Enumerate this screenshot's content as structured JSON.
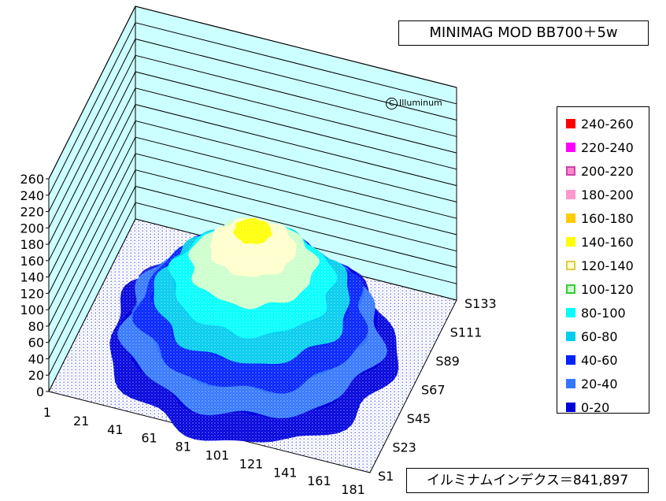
{
  "chart_data": {
    "type": "3d-surface",
    "title": "MINIMAG MOD BB700＋5w",
    "index_label": "イルミナムインデクス＝841,897",
    "watermark": "Illuminum",
    "z_ticks": [
      "0",
      "20",
      "40",
      "60",
      "80",
      "100",
      "120",
      "140",
      "160",
      "180",
      "200",
      "220",
      "240",
      "260"
    ],
    "x_ticks": [
      "1",
      "21",
      "41",
      "61",
      "81",
      "101",
      "121",
      "141",
      "161",
      "181"
    ],
    "y_ticks": [
      "S1",
      "S23",
      "S45",
      "S67",
      "S89",
      "S111",
      "S133"
    ],
    "zlim": [
      0,
      260
    ],
    "x_range": [
      1,
      190
    ],
    "y_range": [
      1,
      150
    ],
    "surface": {
      "shape": "central peak",
      "peak_value": 150,
      "bands_present": [
        "0-20",
        "20-40",
        "40-60",
        "60-80",
        "80-100",
        "100-120",
        "120-140",
        "140-160"
      ]
    },
    "legend": [
      {
        "label": "240-260",
        "color": "#ff0000",
        "border": "#ff0000"
      },
      {
        "label": "220-240",
        "color": "#ff00ff",
        "border": "#ff00ff"
      },
      {
        "label": "200-220",
        "color": "#ff88cc",
        "border": "#cc44aa"
      },
      {
        "label": "180-200",
        "color": "#ff99cc",
        "border": "#ff99cc"
      },
      {
        "label": "160-180",
        "color": "#ffcc00",
        "border": "#ffcc00"
      },
      {
        "label": "140-160",
        "color": "#ffff00",
        "border": "#ffff00"
      },
      {
        "label": "120-140",
        "color": "#ffffcc",
        "border": "#ddcc44"
      },
      {
        "label": "100-120",
        "color": "#ccffcc",
        "border": "#33cc33"
      },
      {
        "label": "80-100",
        "color": "#00ffff",
        "border": "#00ffff"
      },
      {
        "label": "60-80",
        "color": "#00ccee",
        "border": "#00ccee"
      },
      {
        "label": "40-60",
        "color": "#0022ff",
        "border": "#0022ff"
      },
      {
        "label": "20-40",
        "color": "#3377ff",
        "border": "#3377ff"
      },
      {
        "label": "0-20",
        "color": "#0000dd",
        "border": "#0000dd"
      }
    ],
    "grid": true,
    "legend_position": "right",
    "wall_color": "#ccffff",
    "floor_color": "#ffffff"
  }
}
